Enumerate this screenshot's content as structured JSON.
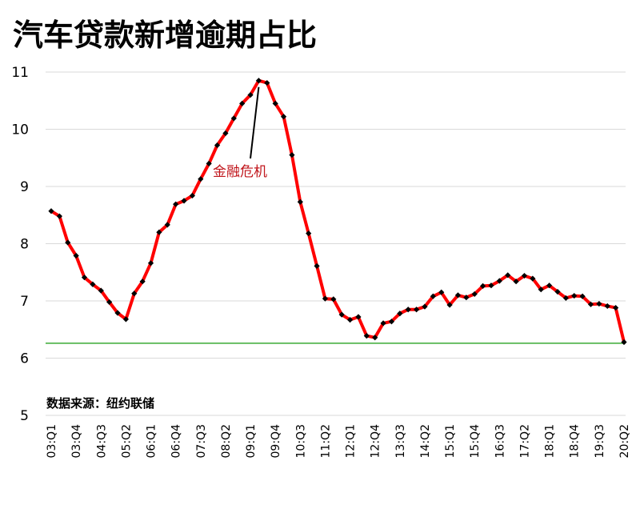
{
  "chart_data": {
    "type": "line",
    "title": "汽车贷款新增逾期占比",
    "xlabel": "",
    "ylabel": "",
    "ylim": [
      5,
      11
    ],
    "yticks": [
      5,
      6,
      7,
      8,
      9,
      10,
      11
    ],
    "grid": true,
    "x": [
      "03:Q1",
      "03:Q2",
      "03:Q3",
      "03:Q4",
      "04:Q1",
      "04:Q2",
      "04:Q3",
      "04:Q4",
      "05:Q1",
      "05:Q2",
      "05:Q3",
      "05:Q4",
      "06:Q1",
      "06:Q2",
      "06:Q3",
      "06:Q4",
      "07:Q1",
      "07:Q2",
      "07:Q3",
      "07:Q4",
      "08:Q1",
      "08:Q2",
      "08:Q3",
      "08:Q4",
      "09:Q1",
      "09:Q2",
      "09:Q3",
      "09:Q4",
      "10:Q1",
      "10:Q2",
      "10:Q3",
      "10:Q4",
      "11:Q1",
      "11:Q2",
      "11:Q3",
      "11:Q4",
      "12:Q1",
      "12:Q2",
      "12:Q3",
      "12:Q4",
      "13:Q1",
      "13:Q2",
      "13:Q3",
      "13:Q4",
      "14:Q1",
      "14:Q2",
      "14:Q3",
      "14:Q4",
      "15:Q1",
      "15:Q2",
      "15:Q3",
      "15:Q4",
      "16:Q1",
      "16:Q2",
      "16:Q3",
      "16:Q4",
      "17:Q1",
      "17:Q2",
      "17:Q3",
      "17:Q4",
      "18:Q1",
      "18:Q2",
      "18:Q3",
      "18:Q4",
      "19:Q1",
      "19:Q2",
      "19:Q3",
      "19:Q4",
      "20:Q1",
      "20:Q2"
    ],
    "xtick_labels": [
      "03:Q1",
      "03:Q4",
      "04:Q3",
      "05:Q2",
      "06:Q1",
      "06:Q4",
      "07:Q3",
      "08:Q2",
      "09:Q1",
      "09:Q4",
      "10:Q3",
      "11:Q2",
      "12:Q1",
      "12:Q4",
      "13:Q3",
      "14:Q2",
      "15:Q1",
      "15:Q4",
      "16:Q3",
      "17:Q2",
      "18:Q1",
      "18:Q4",
      "19:Q3",
      "20:Q2"
    ],
    "series": [
      {
        "name": "汽车贷款新增逾期占比",
        "color": "#ff0000",
        "values": [
          8.57,
          8.48,
          8.02,
          7.79,
          7.41,
          7.29,
          7.18,
          6.98,
          6.79,
          6.68,
          7.13,
          7.34,
          7.66,
          8.2,
          8.33,
          8.69,
          8.75,
          8.84,
          9.13,
          9.4,
          9.72,
          9.93,
          10.19,
          10.45,
          10.6,
          10.85,
          10.81,
          10.45,
          10.22,
          9.55,
          8.73,
          8.18,
          7.61,
          7.04,
          7.03,
          6.76,
          6.67,
          6.72,
          6.39,
          6.36,
          6.61,
          6.64,
          6.78,
          6.85,
          6.85,
          6.9,
          7.08,
          7.15,
          6.93,
          7.1,
          7.06,
          7.12,
          7.26,
          7.27,
          7.35,
          7.45,
          7.34,
          7.44,
          7.39,
          7.2,
          7.27,
          7.16,
          7.05,
          7.09,
          7.08,
          6.94,
          6.95,
          6.91,
          6.88,
          6.28
        ]
      }
    ],
    "reference_line": {
      "value": 6.26,
      "color": "#3aaa35"
    },
    "annotation": {
      "text": "金融危机",
      "target": "09:Q2"
    },
    "source_note": "数据来源：纽约联储"
  }
}
